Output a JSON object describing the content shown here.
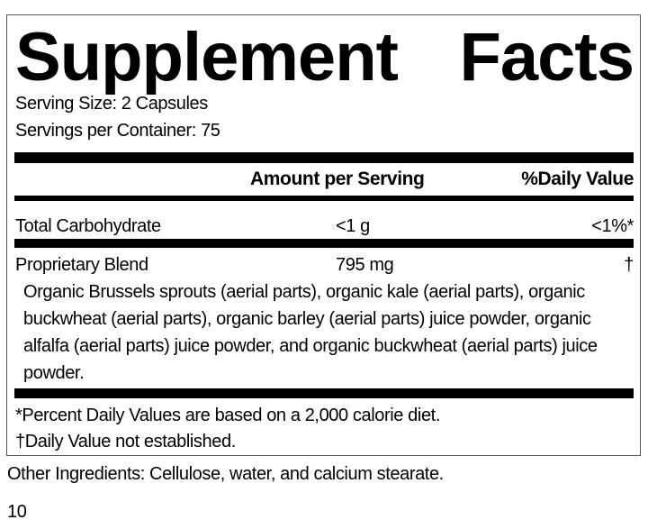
{
  "title": {
    "word1": "Supplement",
    "word2": "Facts"
  },
  "serving_size": "Serving Size: 2 Capsules",
  "servings_per_container": "Servings per Container: 75",
  "header": {
    "amount": "Amount per Serving",
    "daily_value": "%Daily Value"
  },
  "rows": [
    {
      "name": "Total Carbohydrate",
      "amount": "<1 g",
      "dv": "<1%*"
    },
    {
      "name": "Proprietary Blend",
      "amount": "795 mg",
      "dv": "†"
    }
  ],
  "blend_ingredients": [
    "Organic Brussels sprouts (aerial parts), organic kale (aerial parts), organic",
    "buckwheat (aerial parts), organic barley (aerial parts) juice powder, organic",
    "alfalfa (aerial parts) juice powder, and organic buckwheat (aerial parts) juice",
    "powder."
  ],
  "footnotes": [
    "*Percent Daily Values are based on a 2,000 calorie diet.",
    "†Daily Value not established."
  ],
  "other_ingredients": "Other Ingredients: Cellulose, water, and calcium stearate.",
  "page_number": "10"
}
